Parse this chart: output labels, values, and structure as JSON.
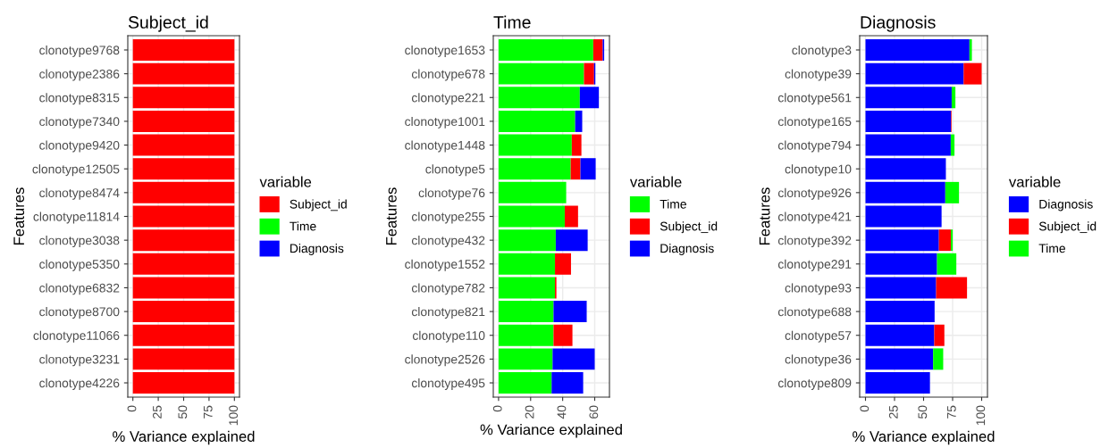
{
  "chart_data": [
    {
      "type": "bar",
      "orientation": "horizontal",
      "stacked": true,
      "title": "Subject_id",
      "xlabel": "% Variance explained",
      "ylabel": "Features",
      "legend_title": "variable",
      "legend": "right",
      "grid": true,
      "categories": [
        "clonotype9768",
        "clonotype2386",
        "clonotype8315",
        "clonotype7340",
        "clonotype9420",
        "clonotype12505",
        "clonotype8474",
        "clonotype11814",
        "clonotype3038",
        "clonotype5350",
        "clonotype6832",
        "clonotype8700",
        "clonotype11066",
        "clonotype3231",
        "clonotype4226"
      ],
      "xlim": [
        -5,
        105
      ],
      "xticks": [
        0,
        25,
        50,
        75,
        100
      ],
      "series": [
        {
          "name": "Subject_id",
          "color": "#ff0000",
          "values": [
            100,
            100,
            100,
            100,
            100,
            100,
            100,
            100,
            100,
            100,
            100,
            100,
            100,
            100,
            100
          ]
        },
        {
          "name": "Time",
          "color": "#00ff00",
          "values": [
            0,
            0,
            0,
            0,
            0,
            0,
            0,
            0,
            0,
            0,
            0,
            0,
            0,
            0,
            0
          ]
        },
        {
          "name": "Diagnosis",
          "color": "#0000ff",
          "values": [
            0,
            0,
            0,
            0,
            0,
            0,
            0,
            0,
            0,
            0,
            0,
            0,
            0,
            0,
            0
          ]
        }
      ]
    },
    {
      "type": "bar",
      "orientation": "horizontal",
      "stacked": true,
      "title": "Time",
      "xlabel": "% Variance explained",
      "ylabel": "Features",
      "legend_title": "variable",
      "legend": "right",
      "grid": true,
      "categories": [
        "clonotype1653",
        "clonotype678",
        "clonotype221",
        "clonotype1001",
        "clonotype1448",
        "clonotype5",
        "clonotype76",
        "clonotype255",
        "clonotype432",
        "clonotype1552",
        "clonotype782",
        "clonotype821",
        "clonotype110",
        "clonotype2526",
        "clonotype495"
      ],
      "xlim": [
        -3.3,
        69.2
      ],
      "xticks": [
        0,
        20,
        40,
        60
      ],
      "series": [
        {
          "name": "Time",
          "color": "#00ff00",
          "values": [
            59.1,
            53.3,
            50.7,
            47.8,
            45.7,
            45.0,
            42.2,
            41.3,
            35.7,
            35.2,
            35.2,
            34.3,
            34.3,
            33.7,
            33.1
          ]
        },
        {
          "name": "Subject_id",
          "color": "#ff0000",
          "values": [
            5.9,
            6.3,
            0,
            0,
            6.0,
            6.1,
            0,
            8.3,
            0,
            10.0,
            0.9,
            0,
            11.8,
            0,
            0
          ]
        },
        {
          "name": "Diagnosis",
          "color": "#0000ff",
          "values": [
            0.9,
            0.8,
            11.9,
            4.4,
            0,
            9.5,
            0,
            0,
            19.9,
            0,
            0,
            20.7,
            0,
            26.3,
            19.7
          ]
        }
      ]
    },
    {
      "type": "bar",
      "orientation": "horizontal",
      "stacked": true,
      "title": "Diagnosis",
      "xlabel": "% Variance explained",
      "ylabel": "Features",
      "legend_title": "variable",
      "legend": "right",
      "grid": true,
      "categories": [
        "clonotype3",
        "clonotype39",
        "clonotype561",
        "clonotype165",
        "clonotype794",
        "clonotype10",
        "clonotype926",
        "clonotype421",
        "clonotype392",
        "clonotype291",
        "clonotype93",
        "clonotype688",
        "clonotype57",
        "clonotype36",
        "clonotype809"
      ],
      "xlim": [
        -5,
        105
      ],
      "xticks": [
        0,
        25,
        50,
        75,
        100
      ],
      "series": [
        {
          "name": "Diagnosis",
          "color": "#0000ff",
          "values": [
            89.5,
            84.5,
            74.2,
            73.7,
            73.4,
            69.2,
            68.7,
            65.5,
            63.2,
            61.6,
            60.8,
            59.5,
            59.2,
            58.2,
            55.5
          ]
        },
        {
          "name": "Subject_id",
          "color": "#ff0000",
          "values": [
            null,
            15.5,
            0,
            0.5,
            0,
            0,
            0,
            0,
            10.3,
            0,
            26.6,
            0,
            8.7,
            0,
            0
          ]
        },
        {
          "name": "Time",
          "color": "#00ff00",
          "values": [
            2.1,
            0,
            3.2,
            0,
            3.2,
            0,
            11.8,
            0,
            1.6,
            16.6,
            0,
            null,
            0,
            8.7,
            0
          ]
        }
      ]
    }
  ]
}
